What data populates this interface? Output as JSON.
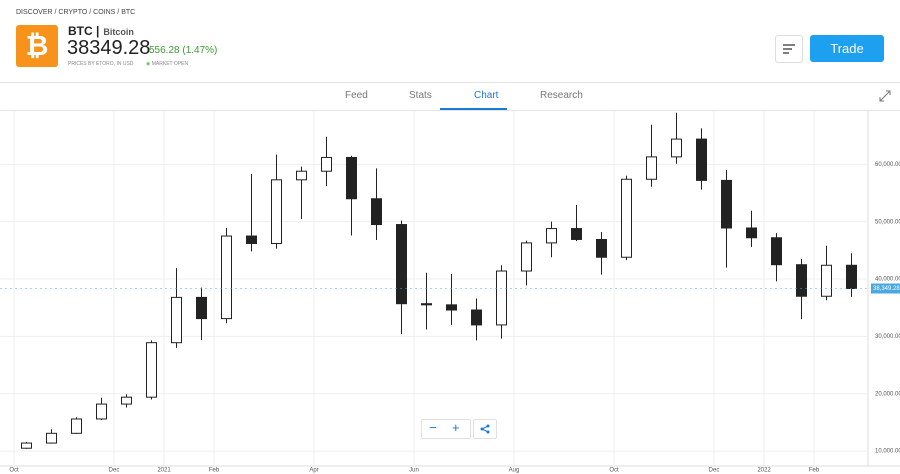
{
  "breadcrumb": [
    "DISCOVER",
    "CRYPTO",
    "COINS",
    "BTC"
  ],
  "header": {
    "symbol": "BTC",
    "name": "Bitcoin",
    "price": "38349.28",
    "change": "556.28 (1.47%)",
    "source": "PRICES BY ETORO, IN USD",
    "status": "MARKET OPEN",
    "trade_button": "Trade"
  },
  "tabs": [
    "Feed",
    "Stats",
    "Chart",
    "Research"
  ],
  "active_tab": "Chart",
  "chart_data": {
    "type": "candlestick",
    "categories": [
      "Oct",
      null,
      null,
      null,
      "Dec",
      null,
      "2021",
      null,
      "Feb",
      null,
      null,
      null,
      "Apr",
      null,
      null,
      null,
      "Jun",
      null,
      null,
      null,
      "Aug",
      null,
      null,
      null,
      "Oct",
      null,
      null,
      null,
      "Dec",
      null,
      "2022",
      null,
      "Feb",
      null
    ],
    "open": [
      10500,
      11400,
      13100,
      15600,
      18200,
      19400,
      28900,
      36800,
      33100,
      47500,
      46200,
      57300,
      58800,
      61200,
      54000,
      49500,
      35700,
      35500,
      34600,
      32000,
      41400,
      46300,
      48800,
      46900,
      43800,
      57400,
      61300,
      64400,
      57200,
      48900,
      47200,
      42500,
      37000,
      42400
    ],
    "high": [
      11600,
      13800,
      15900,
      19300,
      19900,
      29300,
      41900,
      38500,
      48900,
      58300,
      61700,
      59600,
      64800,
      61500,
      59300,
      50200,
      41100,
      40900,
      36600,
      42400,
      46700,
      50000,
      52900,
      48200,
      58000,
      66900,
      69000,
      66300,
      59000,
      51900,
      48000,
      43500,
      45800,
      44500
    ],
    "low": [
      10400,
      11300,
      13000,
      15400,
      17600,
      19000,
      28000,
      29400,
      32300,
      44800,
      45300,
      50500,
      56200,
      47600,
      46800,
      30400,
      31200,
      32000,
      29300,
      29600,
      38900,
      43800,
      46600,
      40800,
      43300,
      56100,
      60100,
      55600,
      42000,
      45600,
      39600,
      33000,
      36300,
      36900
    ],
    "close": [
      11400,
      13100,
      15600,
      18200,
      19400,
      28900,
      36800,
      33100,
      47500,
      46200,
      57300,
      58800,
      61200,
      54000,
      49500,
      35700,
      35500,
      34600,
      32000,
      41400,
      46300,
      48800,
      46900,
      43800,
      57400,
      61300,
      64400,
      57200,
      48900,
      47200,
      42500,
      37000,
      42400,
      38349.28
    ],
    "last_price": {
      "value": 38349.28,
      "label": "38,349.28"
    },
    "up_color": "#ffffff",
    "down_color": "#222222",
    "ylim": [
      7400,
      69300
    ],
    "yticks": [
      {
        "value": 10000,
        "label": "10,000.00"
      },
      {
        "value": 20000,
        "label": "20,000.00"
      },
      {
        "value": 30000,
        "label": "30,000.00"
      },
      {
        "value": 40000,
        "label": "40,000.00"
      },
      {
        "value": 50000,
        "label": "50,000.00"
      },
      {
        "value": 60000,
        "label": "60,000.00"
      }
    ],
    "grid": true
  }
}
